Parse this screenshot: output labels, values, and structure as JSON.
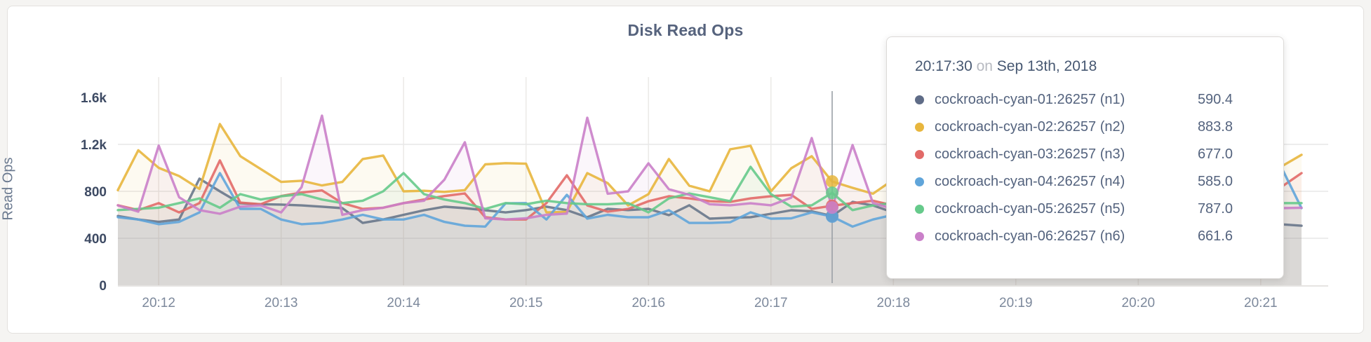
{
  "page": {
    "background": "#f5f4f2",
    "card_background": "#ffffff"
  },
  "chart_data": {
    "type": "line",
    "title": "Disk Read Ops",
    "ylabel": "Read Ops",
    "grid": true,
    "legend_position": "none",
    "x_domain_seconds": [
      0,
      580
    ],
    "x_start_time": "20:11:40",
    "x_step_seconds": 10,
    "ylim": [
      0,
      1773
    ],
    "y_ticks": [
      {
        "label": "0",
        "v": 0
      },
      {
        "label": "400",
        "v": 400
      },
      {
        "label": "800",
        "v": 800
      },
      {
        "label": "1.2k",
        "v": 1200
      },
      {
        "label": "1.6k",
        "v": 1600
      }
    ],
    "y_gridline_values": [
      400,
      800,
      1200
    ],
    "x_ticks": [
      {
        "label": "20:12",
        "t": 20
      },
      {
        "label": "20:13",
        "t": 80
      },
      {
        "label": "20:14",
        "t": 140
      },
      {
        "label": "20:15",
        "t": 200
      },
      {
        "label": "20:16",
        "t": 260
      },
      {
        "label": "20:17",
        "t": 320
      },
      {
        "label": "20:18",
        "t": 380
      },
      {
        "label": "20:19",
        "t": 440
      },
      {
        "label": "20:20",
        "t": 500
      },
      {
        "label": "20:21",
        "t": 560
      }
    ],
    "series": [
      {
        "name": "cockroach-cyan-01:26257 (n1)",
        "color": "#68778b",
        "values": [
          590,
          560,
          540,
          560,
          908,
          800,
          698,
          690,
          687,
          680,
          669,
          657,
          531,
          560,
          600,
          639,
          669,
          657,
          639,
          620,
          640,
          669,
          640,
          579,
          651,
          640,
          651,
          597,
          681,
          567,
          575,
          580,
          609,
          639,
          630,
          590.4,
          710,
          680,
          620,
          600,
          640,
          620,
          600,
          630,
          610,
          590,
          620,
          600,
          580,
          610,
          590,
          600,
          620,
          590,
          570,
          550,
          530,
          519,
          507
        ]
      },
      {
        "name": "cockroach-cyan-02:26257 (n2)",
        "color": "#e8b63d",
        "values": [
          810,
          1150,
          1000,
          930,
          820,
          1373,
          1100,
          990,
          880,
          890,
          850,
          880,
          1075,
          1105,
          800,
          805,
          795,
          810,
          1030,
          1040,
          1035,
          620,
          625,
          955,
          870,
          680,
          776,
          1075,
          848,
          800,
          1158,
          1188,
          800,
          997,
          1099,
          883.8,
          830,
          780,
          900,
          1050,
          820,
          760,
          880,
          940,
          800,
          860,
          780,
          820,
          900,
          850,
          790,
          830,
          760,
          800,
          870,
          820,
          930,
          1010,
          1111
        ]
      },
      {
        "name": "cockroach-cyan-03:26257 (n3)",
        "color": "#e26a68",
        "values": [
          681,
          640,
          700,
          620,
          700,
          1063,
          704,
          690,
          760,
          790,
          808,
          700,
          650,
          660,
          700,
          730,
          760,
          782,
          579,
          560,
          560,
          700,
          937,
          680,
          627,
          650,
          716,
          758,
          740,
          716,
          710,
          740,
          758,
          770,
          651,
          677,
          700,
          720,
          680,
          750,
          700,
          680,
          720,
          850,
          700,
          680,
          720,
          700,
          680,
          720,
          700,
          740,
          700,
          680,
          700,
          720,
          760,
          836,
          955
        ]
      },
      {
        "name": "cockroach-cyan-04:26257 (n4)",
        "color": "#60a5da",
        "values": [
          580,
          560,
          520,
          540,
          620,
          955,
          651,
          651,
          560,
          520,
          530,
          560,
          600,
          560,
          560,
          600,
          540,
          507,
          500,
          698,
          700,
          560,
          770,
          567,
          600,
          580,
          579,
          639,
          531,
          531,
          537,
          621,
          567,
          570,
          621,
          585,
          500,
          560,
          600,
          580,
          560,
          600,
          620,
          580,
          560,
          600,
          580,
          560,
          600,
          580,
          560,
          600,
          620,
          580,
          560,
          600,
          700,
          1009,
          657
        ]
      },
      {
        "name": "cockroach-cyan-05:26257 (n5)",
        "color": "#66ca8b",
        "values": [
          640,
          650,
          660,
          700,
          740,
          660,
          776,
          730,
          758,
          776,
          730,
          700,
          720,
          800,
          955,
          776,
          730,
          700,
          650,
          700,
          690,
          720,
          700,
          690,
          690,
          700,
          621,
          740,
          782,
          750,
          716,
          1009,
          776,
          669,
          681,
          787,
          640,
          680,
          700,
          720,
          680,
          700,
          720,
          700,
          680,
          700,
          720,
          700,
          680,
          700,
          680,
          700,
          720,
          700,
          680,
          700,
          690,
          700,
          700
        ]
      },
      {
        "name": "cockroach-cyan-06:26257 (n6)",
        "color": "#ca80c9",
        "values": [
          680,
          627,
          1190,
          750,
          640,
          609,
          670,
          680,
          620,
          836,
          1445,
          600,
          640,
          660,
          700,
          720,
          900,
          1218,
          570,
          560,
          570,
          600,
          610,
          1427,
          780,
          800,
          1039,
          818,
          770,
          690,
          681,
          698,
          681,
          746,
          1254,
          661.6,
          1194,
          700,
          650,
          900,
          700,
          650,
          1100,
          750,
          640,
          680,
          640,
          700,
          660,
          640,
          900,
          680,
          640,
          660,
          700,
          680,
          660,
          657,
          660
        ]
      }
    ],
    "hover": {
      "t": 350,
      "line_color": "#9aa0a6",
      "dot_radius": 9
    }
  },
  "tooltip": {
    "time": "20:17:30",
    "on_word": "on",
    "date": "Sep 13th, 2018",
    "rows": [
      {
        "label": "cockroach-cyan-01:26257 (n1)",
        "value": "590.4",
        "color": "#5f6c87"
      },
      {
        "label": "cockroach-cyan-02:26257 (n2)",
        "value": "883.8",
        "color": "#e8b63d"
      },
      {
        "label": "cockroach-cyan-03:26257 (n3)",
        "value": "677.0",
        "color": "#e26a68"
      },
      {
        "label": "cockroach-cyan-04:26257 (n4)",
        "value": "585.0",
        "color": "#60a5da"
      },
      {
        "label": "cockroach-cyan-05:26257 (n5)",
        "value": "787.0",
        "color": "#66ca8b"
      },
      {
        "label": "cockroach-cyan-06:26257 (n6)",
        "value": "661.6",
        "color": "#ca80c9"
      }
    ]
  },
  "colors": {
    "grid_horizontal": "#e7e7e7",
    "grid_vertical": "#eceae8",
    "title": "#56637d",
    "y_tick": "#3d4a63",
    "x_tick": "#7d899c",
    "axis_label": "#6b7a90"
  }
}
